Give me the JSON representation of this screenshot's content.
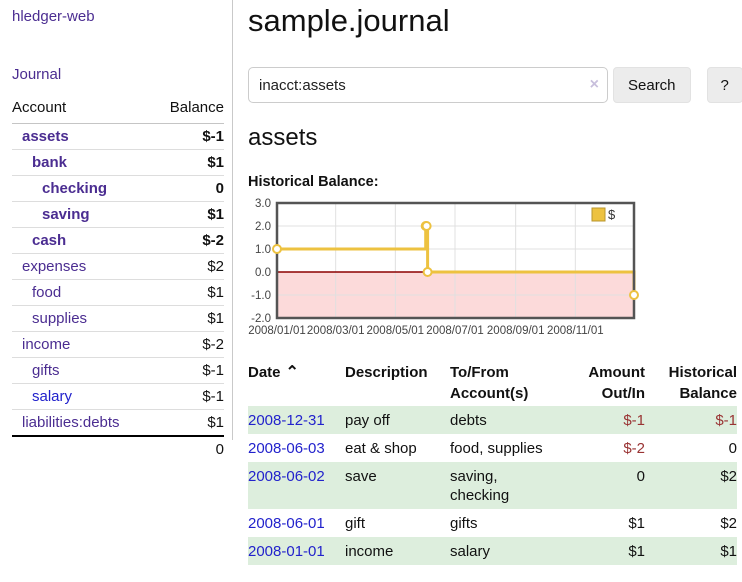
{
  "colors": {
    "link_purple": "#4b2d91",
    "link_blue": "#2222cc",
    "negative_strong": "#990000",
    "negative_soft": "#bb7b7b",
    "negative_table": "#993333",
    "row_stripe_green": "#ddeedd",
    "series_gold": "#edc240"
  },
  "sidebar": {
    "app_title": "hledger-web",
    "journal_link": "Journal",
    "accounts": {
      "header_account": "Account",
      "header_balance": "Balance",
      "rows": [
        {
          "name": "assets",
          "balance": "$-1",
          "indent": 1,
          "bold": true,
          "balance_class": "neg-strong",
          "link": "purple"
        },
        {
          "name": "bank",
          "balance": "$1",
          "indent": 2,
          "bold": true,
          "balance_class": "",
          "link": "purple"
        },
        {
          "name": "checking",
          "balance": "0",
          "indent": 3,
          "bold": true,
          "balance_class": "",
          "link": "purple"
        },
        {
          "name": "saving",
          "balance": "$1",
          "indent": 3,
          "bold": true,
          "balance_class": "",
          "link": "purple"
        },
        {
          "name": "cash",
          "balance": "$-2",
          "indent": 2,
          "bold": true,
          "balance_class": "neg-strong",
          "link": "purple"
        },
        {
          "name": "expenses",
          "balance": "$2",
          "indent": 1,
          "bold": false,
          "balance_class": "",
          "link": "purple"
        },
        {
          "name": "food",
          "balance": "$1",
          "indent": 2,
          "bold": false,
          "balance_class": "",
          "link": "purple"
        },
        {
          "name": "supplies",
          "balance": "$1",
          "indent": 2,
          "bold": false,
          "balance_class": "",
          "link": "purple"
        },
        {
          "name": "income",
          "balance": "$-2",
          "indent": 1,
          "bold": false,
          "balance_class": "neg-soft",
          "link": "purple"
        },
        {
          "name": "gifts",
          "balance": "$-1",
          "indent": 2,
          "bold": false,
          "balance_class": "neg-soft",
          "link": "purple"
        },
        {
          "name": "salary",
          "balance": "$-1",
          "indent": 2,
          "bold": false,
          "balance_class": "neg-soft",
          "link": "blue"
        },
        {
          "name": "liabilities:debts",
          "balance": "$1",
          "indent": 1,
          "bold": false,
          "balance_class": "",
          "link": "purple"
        }
      ],
      "total": "0"
    }
  },
  "main": {
    "title": "sample.journal",
    "search": {
      "value": "inacct:assets",
      "clear_icon": "×",
      "search_label": "Search",
      "help_label": "?"
    },
    "account_heading": "assets",
    "section_label": "Historical Balance:"
  },
  "chart_data": {
    "type": "line",
    "title": "Historical Balance",
    "step": true,
    "series": [
      {
        "name": "$",
        "color": "#edc240",
        "points": [
          [
            "2008-01-01",
            1
          ],
          [
            "2008-06-01",
            2
          ],
          [
            "2008-06-02",
            2
          ],
          [
            "2008-06-03",
            0
          ],
          [
            "2008-12-31",
            -1
          ]
        ]
      }
    ],
    "x_range": [
      "2008-01-01",
      "2008-12-31"
    ],
    "ylim": [
      -2,
      3
    ],
    "y_ticks": [
      "3.0",
      "2.0",
      "1.0",
      "0.0",
      "-1.0",
      "-2.0"
    ],
    "x_ticks": [
      "2008/01/01",
      "2008/03/01",
      "2008/05/01",
      "2008/07/01",
      "2008/09/01",
      "2008/11/01"
    ],
    "legend": {
      "label": "$",
      "position": "top-right"
    },
    "grid": true,
    "negative_region_color": "#fcdada",
    "zero_line_color": "#8b0000"
  },
  "register": {
    "headers": {
      "date": "Date",
      "sort_indicator": "⌃",
      "description": "Description",
      "accounts": "To/From Account(s)",
      "amount": "Amount Out/In",
      "balance": "Historical Balance"
    },
    "rows": [
      {
        "date": "2008-12-31",
        "description": "pay off",
        "accounts": "debts",
        "amount": "$-1",
        "amount_negative": true,
        "balance": "$-1",
        "balance_negative": true
      },
      {
        "date": "2008-06-03",
        "description": "eat & shop",
        "accounts": "food, supplies",
        "amount": "$-2",
        "amount_negative": true,
        "balance": "0",
        "balance_negative": false
      },
      {
        "date": "2008-06-02",
        "description": "save",
        "accounts": "saving, checking",
        "amount": "0",
        "amount_negative": false,
        "balance": "$2",
        "balance_negative": false
      },
      {
        "date": "2008-06-01",
        "description": "gift",
        "accounts": "gifts",
        "amount": "$1",
        "amount_negative": false,
        "balance": "$2",
        "balance_negative": false
      },
      {
        "date": "2008-01-01",
        "description": "income",
        "accounts": "salary",
        "amount": "$1",
        "amount_negative": false,
        "balance": "$1",
        "balance_negative": false
      }
    ]
  }
}
